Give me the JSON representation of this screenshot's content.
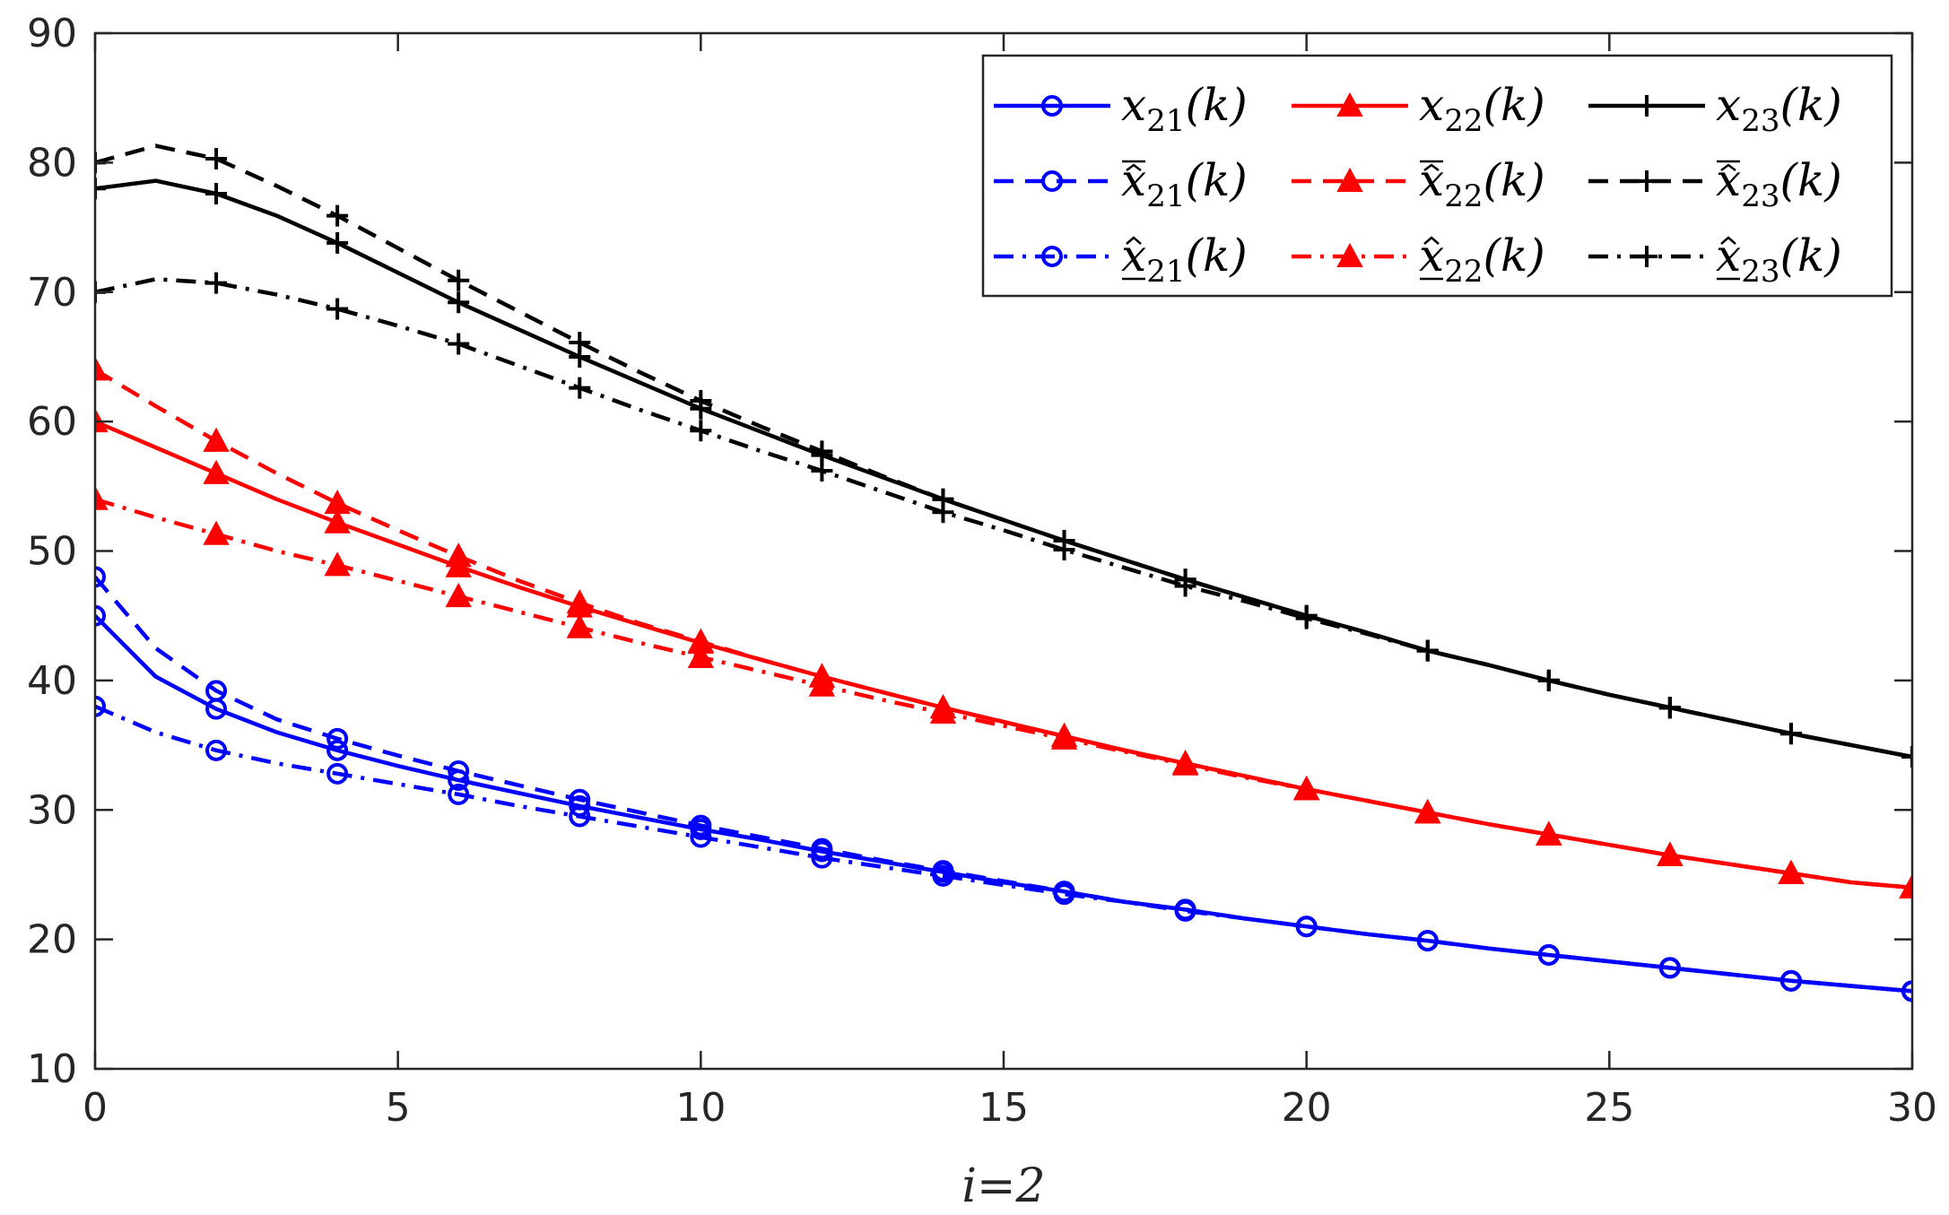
{
  "chart_data": {
    "type": "line",
    "xlabel": "i=2",
    "ylabel": "",
    "xlim": [
      0,
      30
    ],
    "ylim": [
      10,
      90
    ],
    "xticks": [
      0,
      5,
      10,
      15,
      20,
      25,
      30
    ],
    "yticks": [
      10,
      20,
      30,
      40,
      50,
      60,
      70,
      80,
      90
    ],
    "legend_position": "top-right",
    "x": [
      0,
      1,
      2,
      3,
      4,
      5,
      6,
      7,
      8,
      9,
      10,
      11,
      12,
      13,
      14,
      15,
      16,
      17,
      18,
      19,
      20,
      21,
      22,
      23,
      24,
      25,
      26,
      27,
      28,
      29,
      30
    ],
    "series": [
      {
        "name": "x21(k)",
        "legend_main": "x",
        "legend_sub": "21",
        "legend_arg": "(k)",
        "decor": "none",
        "color": "#0000ff",
        "dash": "solid",
        "marker": "circle",
        "values": [
          45,
          40.3,
          37.8,
          36,
          34.6,
          33.4,
          32.3,
          31.3,
          30.3,
          29.4,
          28.5,
          27.7,
          26.8,
          26,
          25.2,
          24.4,
          23.7,
          22.9,
          22.3,
          21.6,
          21,
          20.4,
          19.9,
          19.3,
          18.8,
          18.3,
          17.8,
          17.3,
          16.8,
          16.4,
          16
        ]
      },
      {
        "name": "x̄21(k)",
        "legend_main": "x",
        "legend_sub": "21",
        "legend_arg": "(k)",
        "decor": "overline-hat",
        "color": "#0000ff",
        "dash": "dashed",
        "marker": "circle",
        "values": [
          48,
          42.5,
          39.2,
          37,
          35.5,
          34.2,
          33,
          31.9,
          30.8,
          29.8,
          28.8,
          27.9,
          27,
          26.1,
          25.3,
          24.5,
          23.7,
          22.9,
          22.3,
          21.6,
          21,
          20.4,
          19.9,
          19.3,
          18.8,
          18.3,
          17.8,
          17.3,
          16.8,
          16.4,
          16
        ]
      },
      {
        "name": "x̲21(k)",
        "legend_main": "x",
        "legend_sub": "21",
        "legend_arg": "(k)",
        "decor": "underline-hat",
        "color": "#0000ff",
        "dash": "dashdot",
        "marker": "circle",
        "values": [
          38,
          36,
          34.6,
          33.6,
          32.8,
          32,
          31.2,
          30.3,
          29.5,
          28.7,
          27.9,
          27.1,
          26.3,
          25.6,
          24.9,
          24.2,
          23.5,
          22.9,
          22.2,
          21.6,
          21,
          20.4,
          19.9,
          19.3,
          18.8,
          18.3,
          17.8,
          17.3,
          16.8,
          16.4,
          16
        ]
      },
      {
        "name": "x22(k)",
        "legend_main": "x",
        "legend_sub": "22",
        "legend_arg": "(k)",
        "decor": "none",
        "color": "#ff0000",
        "dash": "solid",
        "marker": "triangle",
        "values": [
          60,
          58,
          56,
          54,
          52.2,
          50.5,
          48.8,
          47.2,
          45.7,
          44.3,
          42.9,
          41.6,
          40.3,
          39.1,
          37.9,
          36.8,
          35.7,
          34.6,
          33.6,
          32.6,
          31.6,
          30.7,
          29.8,
          28.9,
          28.1,
          27.3,
          26.5,
          25.8,
          25.1,
          24.4,
          24
        ]
      },
      {
        "name": "x̄22(k)",
        "legend_main": "x",
        "legend_sub": "22",
        "legend_arg": "(k)",
        "decor": "overline-hat",
        "color": "#ff0000",
        "dash": "dashed",
        "marker": "triangle",
        "values": [
          64,
          61.2,
          58.5,
          56,
          53.7,
          51.6,
          49.6,
          47.7,
          46,
          44.4,
          43,
          41.6,
          40.3,
          39.1,
          37.9,
          36.8,
          35.7,
          34.6,
          33.6,
          32.6,
          31.6,
          30.7,
          29.8,
          28.9,
          28.1,
          27.3,
          26.5,
          25.8,
          25.1,
          24.4,
          24
        ]
      },
      {
        "name": "x̲22(k)",
        "legend_main": "x",
        "legend_sub": "22",
        "legend_arg": "(k)",
        "decor": "underline-hat",
        "color": "#ff0000",
        "dash": "dashdot",
        "marker": "triangle",
        "values": [
          54,
          52.6,
          51.3,
          50,
          48.9,
          47.7,
          46.5,
          45.3,
          44.1,
          42.9,
          41.8,
          40.7,
          39.6,
          38.5,
          37.5,
          36.5,
          35.5,
          34.5,
          33.5,
          32.5,
          31.6,
          30.7,
          29.8,
          28.9,
          28.1,
          27.3,
          26.5,
          25.8,
          25.1,
          24.4,
          24
        ]
      },
      {
        "name": "x23(k)",
        "legend_main": "x",
        "legend_sub": "23",
        "legend_arg": "(k)",
        "decor": "none",
        "color": "#000000",
        "dash": "solid",
        "marker": "plus",
        "values": [
          78,
          78.6,
          77.6,
          75.9,
          73.8,
          71.5,
          69.2,
          67.1,
          65,
          63,
          61,
          59.2,
          57.4,
          55.7,
          54,
          52.4,
          50.8,
          49.3,
          47.8,
          46.4,
          45,
          43.7,
          42.3,
          41.2,
          40,
          38.9,
          37.9,
          36.9,
          35.9,
          35,
          34.1
        ]
      },
      {
        "name": "x̄23(k)",
        "legend_main": "x",
        "legend_sub": "23",
        "legend_arg": "(k)",
        "decor": "overline-hat",
        "color": "#000000",
        "dash": "dashed",
        "marker": "plus",
        "values": [
          80,
          81.3,
          80.3,
          78.2,
          75.9,
          73.4,
          70.9,
          68.5,
          66.1,
          63.8,
          61.6,
          59.6,
          57.7,
          55.8,
          54,
          52.4,
          50.8,
          49.3,
          47.8,
          46.4,
          45,
          43.7,
          42.3,
          41.2,
          40,
          38.9,
          37.9,
          36.9,
          35.9,
          35,
          34.1
        ]
      },
      {
        "name": "x̲23(k)",
        "legend_main": "x",
        "legend_sub": "23",
        "legend_arg": "(k)",
        "decor": "underline-hat",
        "color": "#000000",
        "dash": "dashdot",
        "marker": "plus",
        "values": [
          70,
          71,
          70.7,
          69.8,
          68.7,
          67.4,
          66,
          64.3,
          62.6,
          60.9,
          59.3,
          57.7,
          56.2,
          54.6,
          53,
          51.6,
          50.1,
          48.7,
          47.3,
          46.1,
          44.8,
          43.6,
          42.3,
          41.2,
          40,
          38.9,
          37.9,
          36.9,
          35.9,
          35,
          34.1
        ]
      }
    ]
  }
}
